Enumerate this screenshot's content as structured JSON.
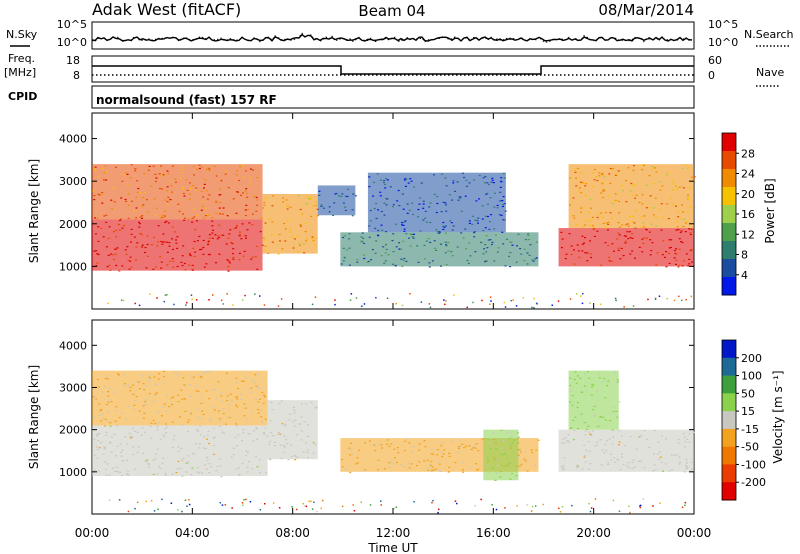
{
  "header": {
    "station": "Adak West (fitACF)",
    "beam": "Beam 04",
    "date": "08/Mar/2014"
  },
  "top_panels": {
    "nsky_label": "N.Sky",
    "nsky_ticks": [
      "10^5",
      "10^0"
    ],
    "nsearch_label": "N.Search",
    "nsearch_ticks": [
      "10^5",
      "10^0"
    ],
    "freq_label": "Freq.",
    "freq_unit": "[MHz]",
    "freq_ticks": [
      "18",
      "8"
    ],
    "nave_label": "Nave",
    "nave_ticks": [
      "60",
      "0"
    ],
    "cpid_label": "CPID",
    "cpid_text": "normalsound (fast) 157 RF"
  },
  "chart_data": [
    {
      "id": "power",
      "type": "heatmap",
      "ylabel": "Slant Range [km]",
      "ylim": [
        0,
        4600
      ],
      "yticks": [
        1000,
        2000,
        3000,
        4000
      ],
      "xlim": [
        0,
        24
      ],
      "colorbar": {
        "label": "Power [dB]",
        "range": [
          0,
          32
        ],
        "ticks": [
          4,
          8,
          12,
          16,
          20,
          24,
          28
        ],
        "colors": [
          "#0018e8",
          "#1a4ca0",
          "#2f7d6c",
          "#4fa04c",
          "#9fd04c",
          "#f6c200",
          "#f08a00",
          "#e84a00",
          "#e00000"
        ]
      },
      "regions": [
        {
          "t0": 0.0,
          "t1": 6.8,
          "r0": 900,
          "r1": 2100,
          "value": 30
        },
        {
          "t0": 0.0,
          "t1": 6.8,
          "r0": 2100,
          "r1": 3400,
          "value": 25
        },
        {
          "t0": 6.8,
          "t1": 9.0,
          "r0": 1300,
          "r1": 2700,
          "value": 22
        },
        {
          "t0": 9.0,
          "t1": 10.5,
          "r0": 2200,
          "r1": 2900,
          "value": 6
        },
        {
          "t0": 9.9,
          "t1": 17.8,
          "r0": 1000,
          "r1": 1800,
          "value": 8
        },
        {
          "t0": 11.0,
          "t1": 16.5,
          "r0": 1800,
          "r1": 3200,
          "value": 5
        },
        {
          "t0": 18.6,
          "t1": 24.0,
          "r0": 1000,
          "r1": 1900,
          "value": 30
        },
        {
          "t0": 19.0,
          "t1": 24.0,
          "r0": 1900,
          "r1": 3400,
          "value": 22
        }
      ]
    },
    {
      "id": "velocity",
      "type": "heatmap",
      "ylabel": "Slant Range [km]",
      "ylim": [
        0,
        4600
      ],
      "yticks": [
        1000,
        2000,
        3000,
        4000
      ],
      "xlim": [
        0,
        24
      ],
      "xticks": [
        "00:00",
        "04:00",
        "08:00",
        "12:00",
        "16:00",
        "20:00",
        "00:00"
      ],
      "xlabel": "Time UT",
      "colorbar": {
        "label": "Velocity [m s⁻¹]",
        "range": [
          -250,
          250
        ],
        "ticks": [
          "200",
          "100",
          "50",
          "15",
          "-15",
          "-50",
          "-100",
          "-200"
        ],
        "colors": [
          "#0018c8",
          "#1e6a96",
          "#3ea03c",
          "#8ad24c",
          "#c8c8c0",
          "#f2a21e",
          "#f07800",
          "#ea3c00",
          "#e00000"
        ]
      },
      "regions": [
        {
          "t0": 0.0,
          "t1": 7.0,
          "r0": 900,
          "r1": 2100,
          "value": 0
        },
        {
          "t0": 0.0,
          "t1": 7.0,
          "r0": 2100,
          "r1": 3400,
          "value": -30
        },
        {
          "t0": 7.0,
          "t1": 9.0,
          "r0": 1300,
          "r1": 2700,
          "value": 0
        },
        {
          "t0": 9.9,
          "t1": 17.8,
          "r0": 1000,
          "r1": 1800,
          "value": -40
        },
        {
          "t0": 15.6,
          "t1": 17.0,
          "r0": 800,
          "r1": 2000,
          "value": 40
        },
        {
          "t0": 18.6,
          "t1": 24.0,
          "r0": 1000,
          "r1": 2000,
          "value": 0
        },
        {
          "t0": 19.0,
          "t1": 21.0,
          "r0": 2000,
          "r1": 3400,
          "value": 40
        }
      ]
    }
  ]
}
